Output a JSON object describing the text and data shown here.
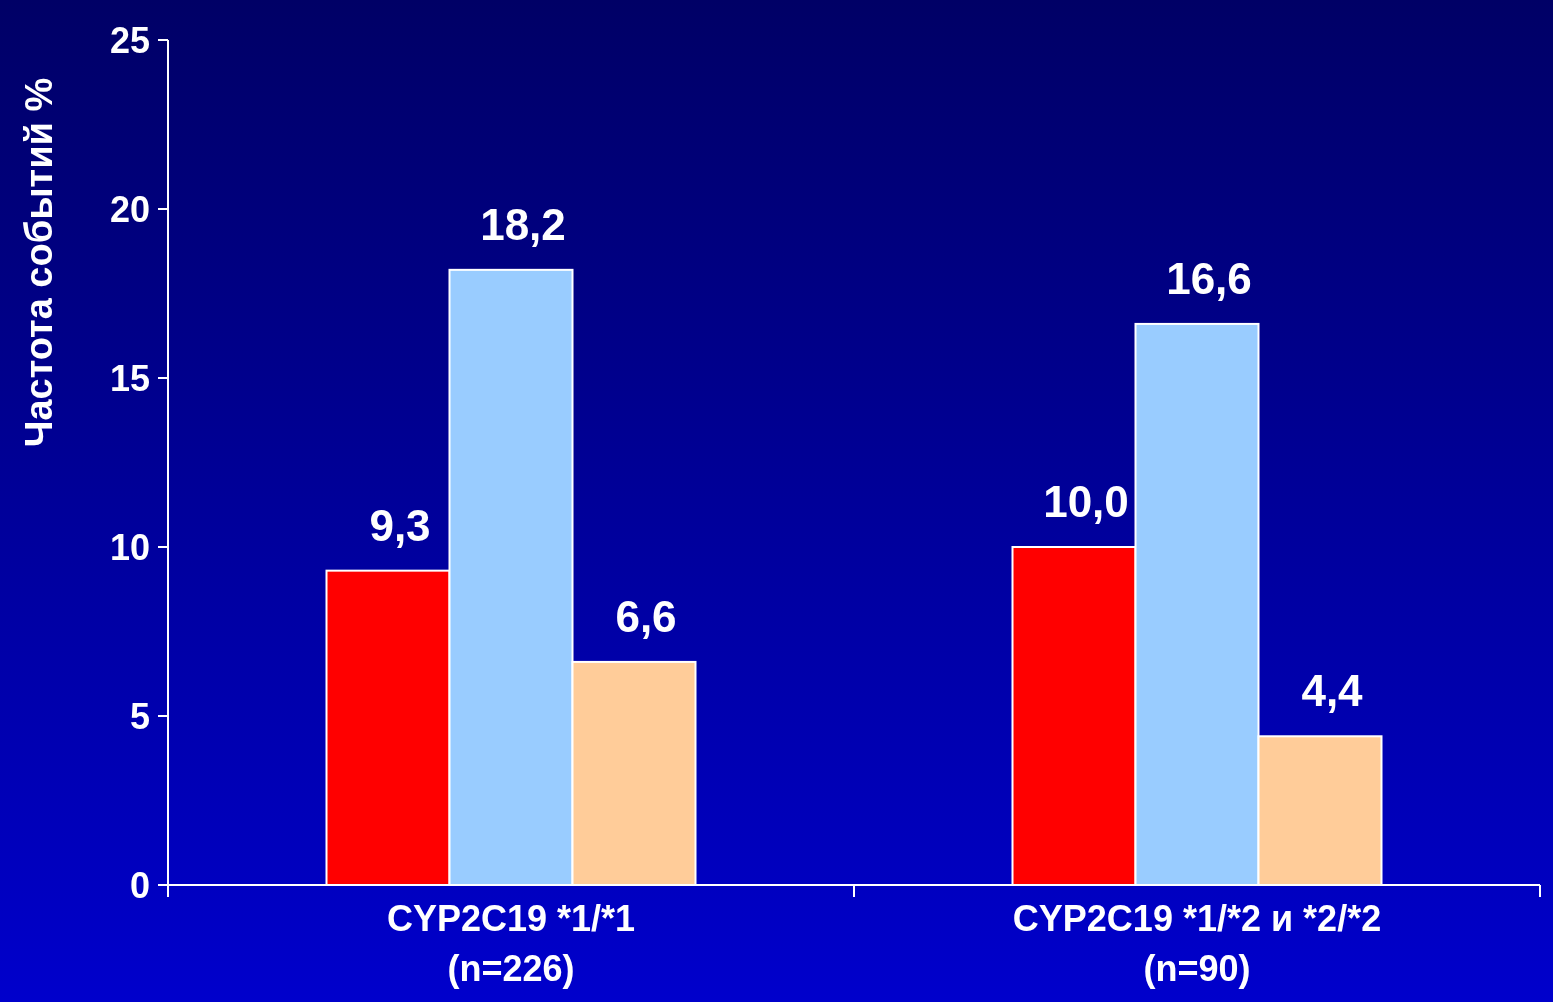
{
  "chart_data": {
    "type": "bar",
    "ylabel": "Частота событий %",
    "categories": [
      "CYP2C19 *1/*1\n(n=226)",
      "CYP2C19 *1/*2 и *2/*2\n(n=90)"
    ],
    "series": [
      {
        "color": "#ff0000",
        "values": [
          9.3,
          10.0
        ],
        "value_labels": [
          "9,3",
          "10,0"
        ]
      },
      {
        "color": "#99ccff",
        "values": [
          18.2,
          16.6
        ],
        "value_labels": [
          "18,2",
          "16,6"
        ]
      },
      {
        "color": "#ffcc99",
        "values": [
          6.6,
          4.4
        ],
        "value_labels": [
          "6,6",
          "4,4"
        ]
      }
    ],
    "ylim": [
      0,
      25
    ],
    "yticks": [
      0,
      5,
      10,
      15,
      20,
      25
    ],
    "grid": false
  }
}
